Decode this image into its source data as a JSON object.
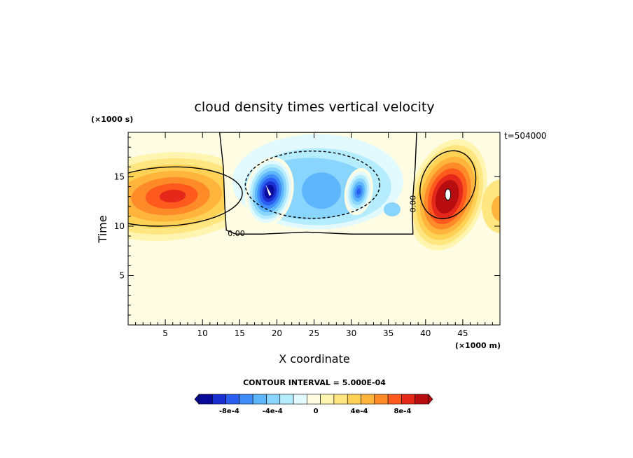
{
  "chart_data": {
    "type": "heatmap",
    "title": "cloud density times vertical velocity",
    "xlabel": "X coordinate",
    "ylabel": "Time",
    "x_scale_label": "(×1000 m)",
    "y_scale_label": "(×1000 s)",
    "annotation": "t=504000",
    "contour_interval_text": "CONTOUR INTERVAL = 5.000E-04",
    "xlim": [
      0,
      50
    ],
    "ylim": [
      0,
      19.5
    ],
    "x_ticks": [
      5,
      10,
      15,
      20,
      25,
      30,
      35,
      40,
      45
    ],
    "y_ticks": [
      5,
      10,
      15
    ],
    "zero_contour_labels": [
      "0.00",
      "0.00"
    ],
    "colorbar": {
      "colors": [
        "#0a0a9a",
        "#1b2fd0",
        "#2a5ef0",
        "#3e8cf7",
        "#5db5fb",
        "#8ad5fd",
        "#b5ecfe",
        "#e2f9fe",
        "#fefde4",
        "#fff5b0",
        "#ffe680",
        "#ffd155",
        "#ffb43c",
        "#ff8a28",
        "#ff5a1e",
        "#e5281a",
        "#b80d10"
      ],
      "tick_labels": [
        "-8e-4",
        "-4e-4",
        "0",
        "4e-4",
        "8e-4"
      ],
      "tick_values": [
        -0.0008,
        -0.0004,
        0,
        0.0004,
        0.0008
      ]
    },
    "features": [
      {
        "name": "background",
        "value": 2e-05
      },
      {
        "name": "left-updraft",
        "x": 5,
        "y": 13,
        "peak": 0.0009
      },
      {
        "name": "downdraft-region",
        "x_range": [
          12.5,
          38.5
        ],
        "y_range": [
          9.2,
          19.5
        ],
        "peak": -0.0011
      },
      {
        "name": "downdraft-core-1",
        "x": 19,
        "y": 13.5,
        "peak": -0.0011
      },
      {
        "name": "downdraft-core-2",
        "x": 31,
        "y": 13.5,
        "peak": -0.0007
      },
      {
        "name": "right-updraft",
        "x": 43,
        "y": 13.2,
        "peak": 0.0012
      }
    ]
  }
}
